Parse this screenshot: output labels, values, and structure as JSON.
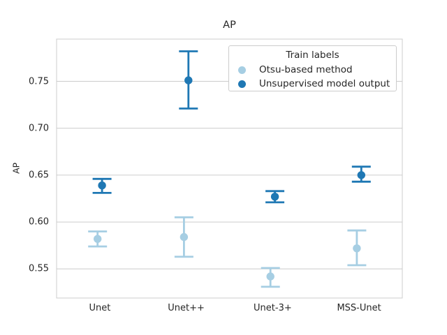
{
  "chart_data": {
    "type": "scatter",
    "subtype": "point-estimates-with-error-bars",
    "title": "AP",
    "xlabel": "",
    "ylabel": "AP",
    "categories": [
      "Unet",
      "Unet++",
      "Unet-3+",
      "MSS-Unet"
    ],
    "yticks": [
      0.55,
      0.6,
      0.65,
      0.7,
      0.75
    ],
    "ytick_labels": [
      "0.55",
      "0.60",
      "0.65",
      "0.70",
      "0.75"
    ],
    "ylim": [
      0.519,
      0.795
    ],
    "grid": "horizontal-only",
    "plot_border_color": "#cccccc",
    "gridline_color": "#cccccc",
    "text_color": "#262626",
    "legend": {
      "title": "Train labels",
      "position": "upper right"
    },
    "series": [
      {
        "name": "Otsu-based method",
        "color": "#a6cee3",
        "values": [
          0.582,
          0.584,
          0.542,
          0.572
        ],
        "err_low": [
          0.574,
          0.563,
          0.531,
          0.554
        ],
        "err_high": [
          0.59,
          0.605,
          0.551,
          0.591
        ]
      },
      {
        "name": "Unsupervised model output",
        "color": "#1f78b4",
        "values": [
          0.639,
          0.751,
          0.627,
          0.65
        ],
        "err_low": [
          0.631,
          0.721,
          0.621,
          0.643
        ],
        "err_high": [
          0.646,
          0.782,
          0.633,
          0.659
        ]
      }
    ]
  }
}
